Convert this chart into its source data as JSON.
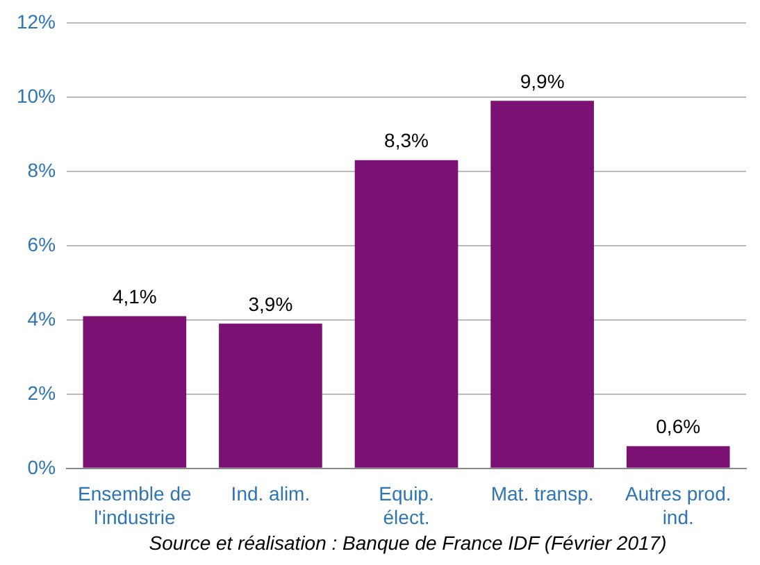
{
  "chart_data": {
    "type": "bar",
    "categories": [
      "Ensemble de l'industrie",
      "Ind. alim.",
      "Equip. élect.",
      "Mat. transp.",
      "Autres prod. ind."
    ],
    "values": [
      4.1,
      3.9,
      8.3,
      9.9,
      0.6
    ],
    "color": "#7b1173",
    "value_labels": [
      "4,1%",
      "3,9%",
      "8,3%",
      "9,9%",
      "0,6%"
    ],
    "ylim": [
      0,
      12
    ],
    "yticks": [
      {
        "value": 0,
        "label": "0%"
      },
      {
        "value": 2,
        "label": "2%"
      },
      {
        "value": 4,
        "label": "4%"
      },
      {
        "value": 6,
        "label": "6%"
      },
      {
        "value": 8,
        "label": "8%"
      },
      {
        "value": 10,
        "label": "10%"
      },
      {
        "value": 12,
        "label": "12%"
      }
    ],
    "grid": "y",
    "legend": false,
    "annotations": [
      "Source et réalisation : Banque de France IDF (Février 2017)"
    ]
  }
}
